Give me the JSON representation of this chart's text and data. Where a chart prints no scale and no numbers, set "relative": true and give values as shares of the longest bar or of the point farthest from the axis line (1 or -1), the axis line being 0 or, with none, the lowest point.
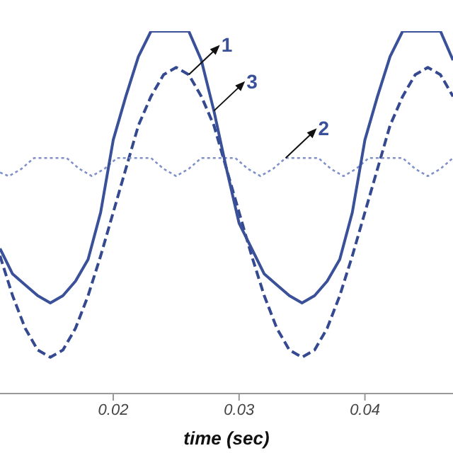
{
  "chart_data": {
    "type": "line",
    "xlabel": "time (sec)",
    "relative": true,
    "xlim": [
      0.011,
      0.047
    ],
    "xticks": [
      0.02,
      0.03,
      0.04
    ],
    "marker": "none",
    "x": [
      0.011,
      0.012,
      0.013,
      0.014,
      0.015,
      0.016,
      0.017,
      0.018,
      0.019,
      0.02,
      0.021,
      0.022,
      0.023,
      0.024,
      0.025,
      0.026,
      0.027,
      0.028,
      0.029,
      0.03,
      0.031,
      0.032,
      0.033,
      0.034,
      0.035,
      0.036,
      0.037,
      0.038,
      0.039,
      0.04,
      0.041,
      0.042,
      0.043,
      0.044,
      0.045,
      0.046,
      0.047
    ],
    "series": [
      {
        "color": "#34498f",
        "line_style": "dashed",
        "values": [
          0.38,
          0.27,
          0.18,
          0.12,
          0.1,
          0.12,
          0.18,
          0.27,
          0.38,
          0.5,
          0.62,
          0.74,
          0.82,
          0.88,
          0.9,
          0.88,
          0.82,
          0.74,
          0.62,
          0.5,
          0.38,
          0.27,
          0.18,
          0.12,
          0.1,
          0.12,
          0.18,
          0.27,
          0.38,
          0.5,
          0.62,
          0.74,
          0.82,
          0.88,
          0.9,
          0.88,
          0.82
        ]
      },
      {
        "color": "#8090c8",
        "line_style": "dotted",
        "x": [
          0.011,
          0.0117,
          0.0127,
          0.0137,
          0.0163,
          0.0173,
          0.0183,
          0.0193,
          0.0203,
          0.023,
          0.024,
          0.025,
          0.026,
          0.027,
          0.0297,
          0.0307,
          0.0317,
          0.0327,
          0.0337,
          0.0363,
          0.0373,
          0.0383,
          0.0393,
          0.0403,
          0.043,
          0.044,
          0.045,
          0.046,
          0.047
        ],
        "values": [
          0.61,
          0.6,
          0.62,
          0.65,
          0.65,
          0.62,
          0.6,
          0.62,
          0.65,
          0.65,
          0.62,
          0.6,
          0.62,
          0.65,
          0.65,
          0.62,
          0.6,
          0.62,
          0.65,
          0.65,
          0.62,
          0.6,
          0.62,
          0.65,
          0.65,
          0.62,
          0.6,
          0.62,
          0.65
        ]
      },
      {
        "color": "#3a5199",
        "line_style": "solid",
        "values": [
          0.4,
          0.33,
          0.3,
          0.27,
          0.25,
          0.27,
          0.31,
          0.37,
          0.5,
          0.7,
          0.82,
          0.93,
          1,
          1,
          1,
          1,
          0.92,
          0.78,
          0.62,
          0.47,
          0.4,
          0.33,
          0.3,
          0.27,
          0.25,
          0.27,
          0.31,
          0.37,
          0.5,
          0.7,
          0.82,
          0.93,
          1,
          1,
          1,
          1,
          0.92
        ]
      }
    ],
    "annotations": [
      {
        "text": "1",
        "x": 0.026,
        "y": 0.88
      },
      {
        "text": "3",
        "x": 0.028,
        "y": 0.78
      },
      {
        "text": "2",
        "x": 0.0337,
        "y": 0.65
      }
    ]
  }
}
